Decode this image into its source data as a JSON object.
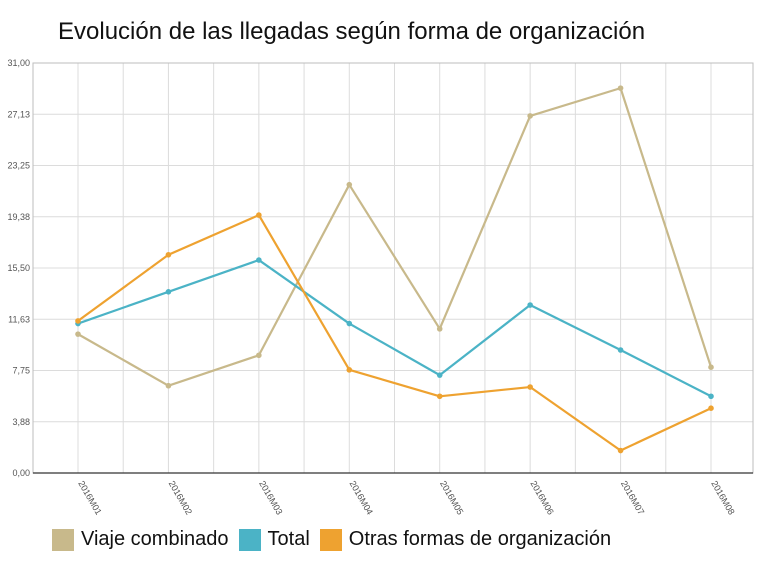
{
  "chart_data": {
    "type": "line",
    "title": "Evolución de las llegadas según forma de organización",
    "xlabel": "",
    "ylabel": "",
    "categories": [
      "2016M01",
      "2016M02",
      "2016M03",
      "2016M04",
      "2016M05",
      "2016M06",
      "2016M07",
      "2016M08"
    ],
    "yticks": [
      "0,00",
      "3,88",
      "7,75",
      "11,63",
      "15,50",
      "19,38",
      "23,25",
      "27,13",
      "31,00"
    ],
    "ylim": [
      0,
      31
    ],
    "grid": true,
    "legend_position": "bottom",
    "series": [
      {
        "name": "Viaje combinado",
        "color": "#c8b98b",
        "values": [
          10.5,
          6.6,
          8.9,
          21.8,
          10.9,
          27.0,
          29.1,
          8.0
        ]
      },
      {
        "name": "Total",
        "color": "#4bb3c6",
        "values": [
          11.3,
          13.7,
          16.1,
          11.3,
          7.4,
          12.7,
          9.3,
          5.8
        ]
      },
      {
        "name": "Otras formas de organización",
        "color": "#eea230",
        "values": [
          11.5,
          16.5,
          19.5,
          7.8,
          5.8,
          6.5,
          1.7,
          4.9
        ]
      }
    ]
  }
}
